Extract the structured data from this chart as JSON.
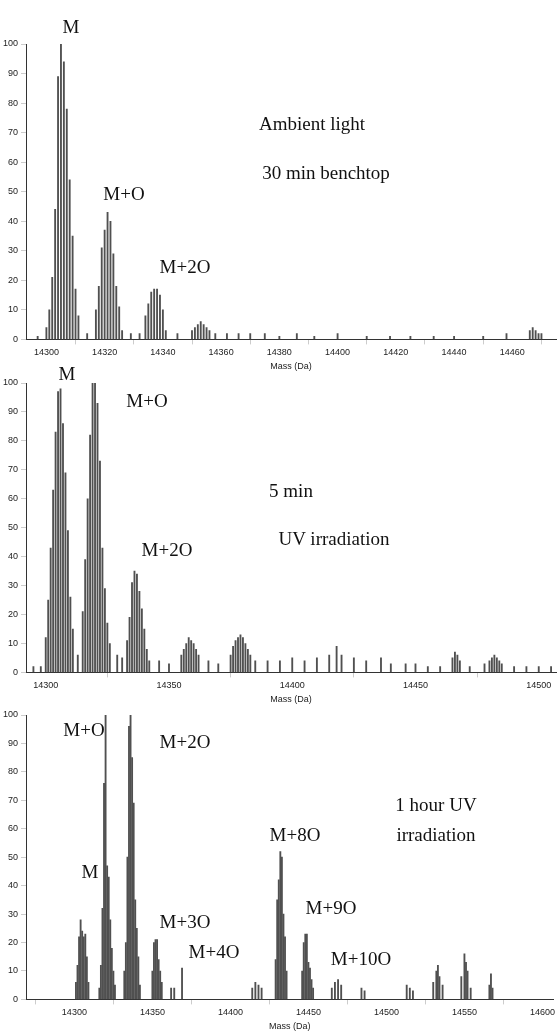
{
  "chart_data": [
    {
      "type": "bar",
      "xlabel": "Mass (Da)",
      "color": "#505050",
      "xlim": [
        14293,
        14475
      ],
      "xticks": [
        14300,
        14320,
        14340,
        14360,
        14380,
        14400,
        14420,
        14440,
        14460
      ],
      "ylim": [
        0,
        100
      ],
      "yticks": [
        0,
        10,
        20,
        30,
        40,
        50,
        60,
        70,
        80,
        90,
        100
      ],
      "x": [
        14297,
        14300,
        14301,
        14302,
        14303,
        14304,
        14305,
        14306,
        14307,
        14308,
        14309,
        14310,
        14311,
        14314,
        14317,
        14318,
        14319,
        14320,
        14321,
        14322,
        14323,
        14324,
        14325,
        14326,
        14329,
        14332,
        14334,
        14335,
        14336,
        14337,
        14338,
        14339,
        14340,
        14341,
        14345,
        14350,
        14351,
        14352,
        14353,
        14354,
        14355,
        14356,
        14358,
        14362,
        14366,
        14370,
        14375,
        14380,
        14386,
        14392,
        14400,
        14410,
        14418,
        14425,
        14433,
        14440,
        14450,
        14458,
        14466,
        14467,
        14468,
        14469,
        14470
      ],
      "values": [
        1,
        4,
        10,
        21,
        44,
        89,
        100,
        94,
        78,
        54,
        35,
        17,
        8,
        2,
        10,
        18,
        31,
        37,
        43,
        40,
        29,
        18,
        11,
        3,
        2,
        2,
        8,
        12,
        16,
        17,
        17,
        15,
        10,
        3,
        2,
        3,
        4,
        5,
        6,
        5,
        4,
        3,
        2,
        2,
        2,
        2,
        2,
        1,
        2,
        1,
        2,
        1,
        1,
        1,
        1,
        1,
        1,
        2,
        3,
        4,
        3,
        2,
        2
      ],
      "annotations": [
        "M",
        "M+O",
        "M+2O",
        "Ambient light",
        "30 min benchtop"
      ]
    },
    {
      "type": "bar",
      "xlabel": "Mass (Da)",
      "color": "#505050",
      "xlim": [
        14292,
        14507
      ],
      "xticks": [
        14300,
        14350,
        14400,
        14450,
        14500
      ],
      "ylim": [
        0,
        100
      ],
      "yticks": [
        0,
        10,
        20,
        30,
        40,
        50,
        60,
        70,
        80,
        90,
        100
      ],
      "x": [
        14295,
        14298,
        14300,
        14301,
        14302,
        14303,
        14304,
        14305,
        14306,
        14307,
        14308,
        14309,
        14310,
        14311,
        14313,
        14315,
        14316,
        14317,
        14318,
        14319,
        14320,
        14321,
        14322,
        14323,
        14324,
        14325,
        14326,
        14329,
        14331,
        14333,
        14334,
        14335,
        14336,
        14337,
        14338,
        14339,
        14340,
        14341,
        14342,
        14346,
        14350,
        14355,
        14356,
        14357,
        14358,
        14359,
        14360,
        14361,
        14362,
        14366,
        14370,
        14375,
        14376,
        14377,
        14378,
        14379,
        14380,
        14381,
        14382,
        14383,
        14385,
        14390,
        14395,
        14400,
        14405,
        14410,
        14415,
        14418,
        14420,
        14425,
        14430,
        14436,
        14440,
        14446,
        14450,
        14455,
        14460,
        14465,
        14466,
        14467,
        14468,
        14472,
        14478,
        14480,
        14481,
        14482,
        14483,
        14484,
        14485,
        14490,
        14495,
        14500,
        14505
      ],
      "values": [
        2,
        2,
        12,
        25,
        43,
        63,
        83,
        97,
        98,
        86,
        69,
        49,
        26,
        15,
        6,
        21,
        39,
        60,
        82,
        100,
        100,
        93,
        73,
        43,
        29,
        17,
        10,
        6,
        5,
        11,
        19,
        31,
        35,
        34,
        28,
        22,
        15,
        8,
        4,
        4,
        3,
        6,
        8,
        10,
        12,
        11,
        10,
        8,
        6,
        4,
        3,
        6,
        9,
        11,
        12,
        13,
        12,
        10,
        8,
        6,
        4,
        4,
        4,
        5,
        4,
        5,
        6,
        9,
        6,
        5,
        4,
        5,
        3,
        3,
        3,
        2,
        2,
        5,
        7,
        6,
        4,
        2,
        3,
        4,
        5,
        6,
        5,
        4,
        3,
        2,
        2,
        2,
        2
      ],
      "annotations": [
        "M",
        "M+O",
        "M+2O",
        "5 min",
        "UV irradiation"
      ]
    },
    {
      "type": "bar",
      "xlabel": "Mass (Da)",
      "color": "#505050",
      "xlim": [
        14269,
        14607
      ],
      "xticks": [
        14300,
        14350,
        14400,
        14450,
        14500,
        14550,
        14600
      ],
      "ylim": [
        0,
        100
      ],
      "yticks": [
        0,
        10,
        20,
        30,
        40,
        50,
        60,
        70,
        80,
        90,
        100
      ],
      "x": [
        14301,
        14302,
        14303,
        14304,
        14305,
        14306,
        14307,
        14308,
        14309,
        14316,
        14317,
        14318,
        14319,
        14320,
        14321,
        14322,
        14323,
        14324,
        14325,
        14326,
        14332,
        14333,
        14334,
        14335,
        14336,
        14337,
        14338,
        14339,
        14340,
        14341,
        14342,
        14350,
        14351,
        14352,
        14353,
        14354,
        14355,
        14356,
        14362,
        14364,
        14369,
        14414,
        14416,
        14418,
        14420,
        14429,
        14430,
        14431,
        14432,
        14433,
        14434,
        14435,
        14436,
        14446,
        14447,
        14448,
        14449,
        14450,
        14451,
        14452,
        14453,
        14465,
        14467,
        14469,
        14471,
        14484,
        14486,
        14513,
        14515,
        14517,
        14530,
        14532,
        14533,
        14534,
        14536,
        14548,
        14550,
        14551,
        14552,
        14554,
        14566,
        14567,
        14568
      ],
      "values": [
        6,
        12,
        22,
        28,
        24,
        22,
        23,
        15,
        6,
        4,
        12,
        32,
        76,
        100,
        47,
        43,
        28,
        18,
        10,
        5,
        10,
        20,
        50,
        96,
        100,
        85,
        69,
        35,
        25,
        15,
        5,
        10,
        20,
        21,
        21,
        14,
        10,
        6,
        4,
        4,
        11,
        4,
        6,
        5,
        4,
        14,
        35,
        42,
        52,
        50,
        30,
        22,
        10,
        10,
        20,
        23,
        23,
        13,
        11,
        7,
        4,
        4,
        6,
        7,
        5,
        4,
        3,
        5,
        4,
        3,
        6,
        10,
        12,
        8,
        5,
        8,
        16,
        13,
        10,
        4,
        5,
        9,
        4
      ],
      "annotations": [
        "M+O",
        "M+2O",
        "M",
        "M+3O",
        "M+4O",
        "M+8O",
        "M+9O",
        "M+10O",
        "1 hour UV",
        "irradiation"
      ]
    }
  ]
}
